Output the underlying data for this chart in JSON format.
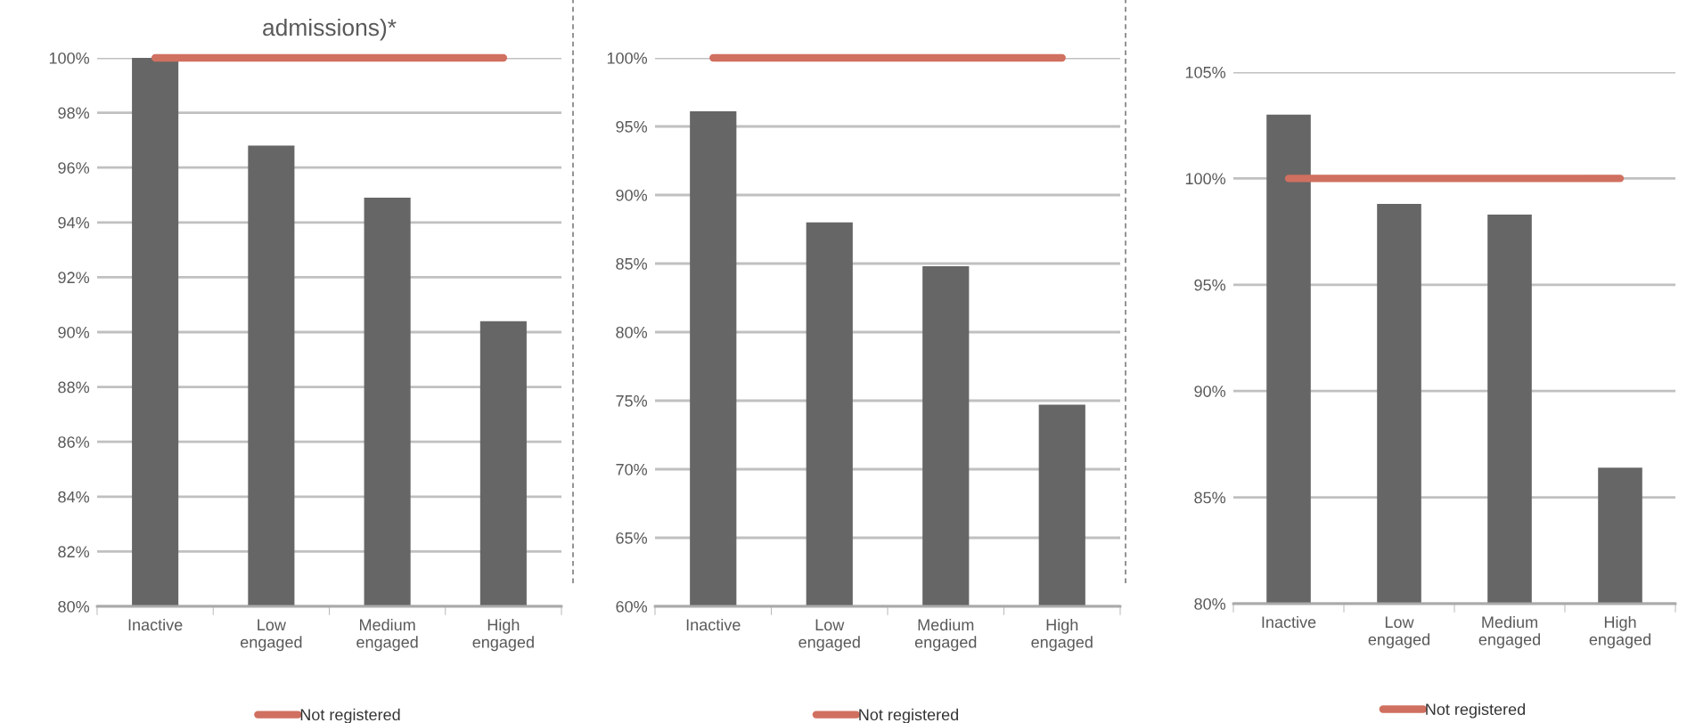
{
  "chart_data": [
    {
      "type": "bar",
      "title": "admissions)*",
      "categories": [
        "Inactive",
        "Low\nengaged",
        "Medium\nengaged",
        "High\nengaged"
      ],
      "series": [
        {
          "color": "#666666",
          "values": [
            100,
            96.8,
            94.9,
            90.4
          ]
        },
        {
          "type": "line",
          "name": "Not registered",
          "color": "#d07060",
          "values": [
            100,
            100,
            100,
            100
          ]
        }
      ],
      "ylim": [
        80,
        100
      ],
      "yticks": [
        {
          "value": 80,
          "label": "80%"
        },
        {
          "value": 82,
          "label": "82%"
        },
        {
          "value": 84,
          "label": "84%"
        },
        {
          "value": 86,
          "label": "86%"
        },
        {
          "value": 88,
          "label": "88%"
        },
        {
          "value": 90,
          "label": "90%"
        },
        {
          "value": 92,
          "label": "92%"
        },
        {
          "value": 94,
          "label": "94%"
        },
        {
          "value": 96,
          "label": "96%"
        },
        {
          "value": 98,
          "label": "98%"
        },
        {
          "value": 100,
          "label": "100%"
        }
      ],
      "grid": "y",
      "legend": "bottom",
      "marker": "none"
    },
    {
      "type": "bar",
      "categories": [
        "Inactive",
        "Low\nengaged",
        "Medium\nengaged",
        "High\nengaged"
      ],
      "series": [
        {
          "color": "#666666",
          "values": [
            96.1,
            88.0,
            84.8,
            74.7
          ]
        },
        {
          "type": "line",
          "name": "Not registered",
          "color": "#d07060",
          "values": [
            100,
            100,
            100,
            100
          ]
        }
      ],
      "ylim": [
        60,
        100
      ],
      "yticks": [
        {
          "value": 60,
          "label": "60%"
        },
        {
          "value": 65,
          "label": "65%"
        },
        {
          "value": 70,
          "label": "70%"
        },
        {
          "value": 75,
          "label": "75%"
        },
        {
          "value": 80,
          "label": "80%"
        },
        {
          "value": 85,
          "label": "85%"
        },
        {
          "value": 90,
          "label": "90%"
        },
        {
          "value": 95,
          "label": "95%"
        },
        {
          "value": 100,
          "label": "100%"
        }
      ],
      "grid": "y",
      "legend": "bottom",
      "marker": "none"
    },
    {
      "type": "bar",
      "categories": [
        "Inactive",
        "Low\nengaged",
        "Medium\nengaged",
        "High\nengaged"
      ],
      "series": [
        {
          "color": "#666666",
          "values": [
            103.0,
            98.8,
            98.3,
            86.4
          ]
        },
        {
          "type": "line",
          "name": "Not registered",
          "color": "#d07060",
          "values": [
            100,
            100,
            100,
            100
          ]
        }
      ],
      "ylim": [
        80,
        105
      ],
      "yticks": [
        {
          "value": 80,
          "label": "80%"
        },
        {
          "value": 85,
          "label": "85%"
        },
        {
          "value": 90,
          "label": "90%"
        },
        {
          "value": 95,
          "label": "95%"
        },
        {
          "value": 100,
          "label": "100%"
        },
        {
          "value": 105,
          "label": "105%"
        }
      ],
      "grid": "y",
      "legend": "bottom",
      "marker": "none"
    }
  ]
}
